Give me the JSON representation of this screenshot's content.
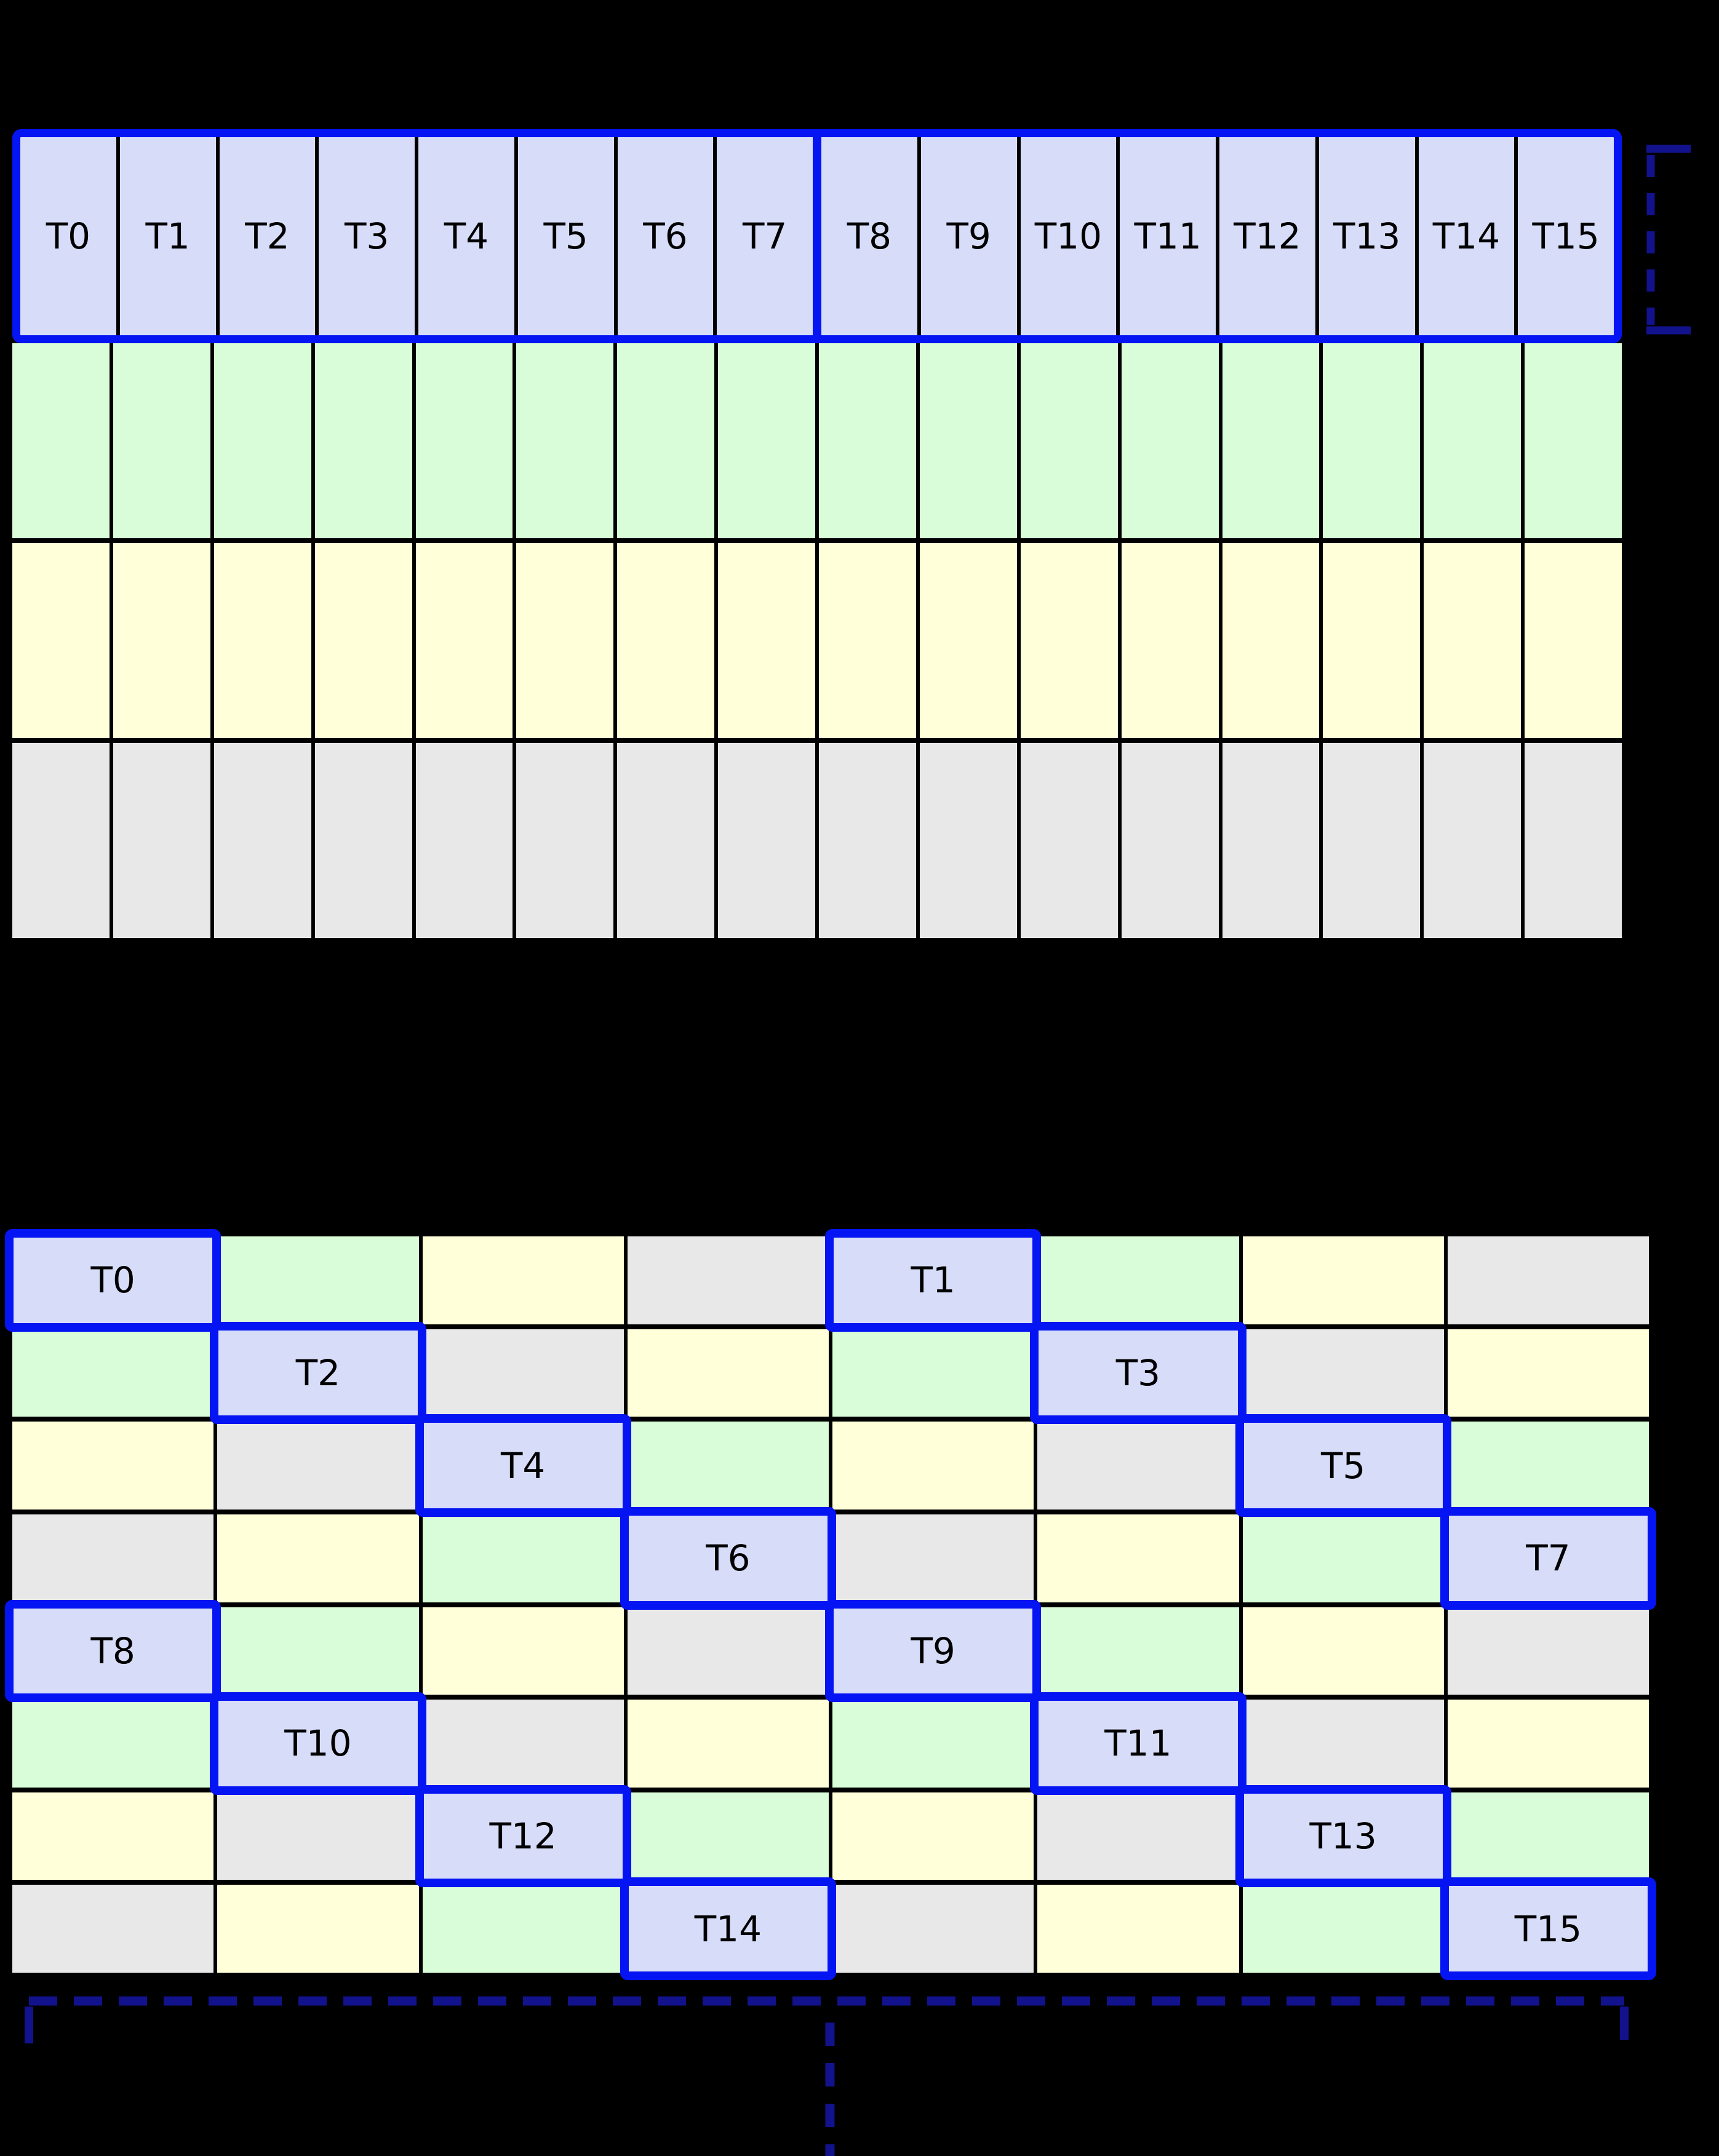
{
  "colors": {
    "background": "#000000",
    "thread_cell_fill": "#d7ddf9",
    "green_cell": "#d9fdd9",
    "yellow_cell": "#ffffd9",
    "gray_cell": "#e8e8e8",
    "frame_blue": "#0514f2",
    "bracket_navy": "#12128c",
    "grid_line": "#000000",
    "label_text": "#000000"
  },
  "top_grid": {
    "thread_labels": [
      "T0",
      "T1",
      "T2",
      "T3",
      "T4",
      "T5",
      "T6",
      "T7",
      "T8",
      "T9",
      "T10",
      "T11",
      "T12",
      "T13",
      "T14",
      "T15"
    ],
    "memory_rows": [
      "green",
      "yellow",
      "gray"
    ],
    "columns": 16
  },
  "bottom_grid": {
    "rows": 8,
    "cols": 8,
    "color_matrix": [
      [
        "blue",
        "green",
        "yellow",
        "gray",
        "blue",
        "green",
        "yellow",
        "gray"
      ],
      [
        "green",
        "blue",
        "gray",
        "yellow",
        "green",
        "blue",
        "gray",
        "yellow"
      ],
      [
        "yellow",
        "gray",
        "blue",
        "green",
        "yellow",
        "gray",
        "blue",
        "green"
      ],
      [
        "gray",
        "yellow",
        "green",
        "blue",
        "gray",
        "yellow",
        "green",
        "blue"
      ],
      [
        "blue",
        "green",
        "yellow",
        "gray",
        "blue",
        "green",
        "yellow",
        "gray"
      ],
      [
        "green",
        "blue",
        "gray",
        "yellow",
        "green",
        "blue",
        "gray",
        "yellow"
      ],
      [
        "yellow",
        "gray",
        "blue",
        "green",
        "yellow",
        "gray",
        "blue",
        "green"
      ],
      [
        "gray",
        "yellow",
        "green",
        "blue",
        "gray",
        "yellow",
        "green",
        "blue"
      ]
    ],
    "threads": [
      {
        "label": "T0",
        "row": 0,
        "col": 0
      },
      {
        "label": "T1",
        "row": 0,
        "col": 4
      },
      {
        "label": "T2",
        "row": 1,
        "col": 1
      },
      {
        "label": "T3",
        "row": 1,
        "col": 5
      },
      {
        "label": "T4",
        "row": 2,
        "col": 2
      },
      {
        "label": "T5",
        "row": 2,
        "col": 6
      },
      {
        "label": "T6",
        "row": 3,
        "col": 3
      },
      {
        "label": "T7",
        "row": 3,
        "col": 7
      },
      {
        "label": "T8",
        "row": 4,
        "col": 0
      },
      {
        "label": "T9",
        "row": 4,
        "col": 4
      },
      {
        "label": "T10",
        "row": 5,
        "col": 1
      },
      {
        "label": "T11",
        "row": 5,
        "col": 5
      },
      {
        "label": "T12",
        "row": 6,
        "col": 2
      },
      {
        "label": "T13",
        "row": 6,
        "col": 6
      },
      {
        "label": "T14",
        "row": 7,
        "col": 3
      },
      {
        "label": "T15",
        "row": 7,
        "col": 7
      }
    ]
  }
}
